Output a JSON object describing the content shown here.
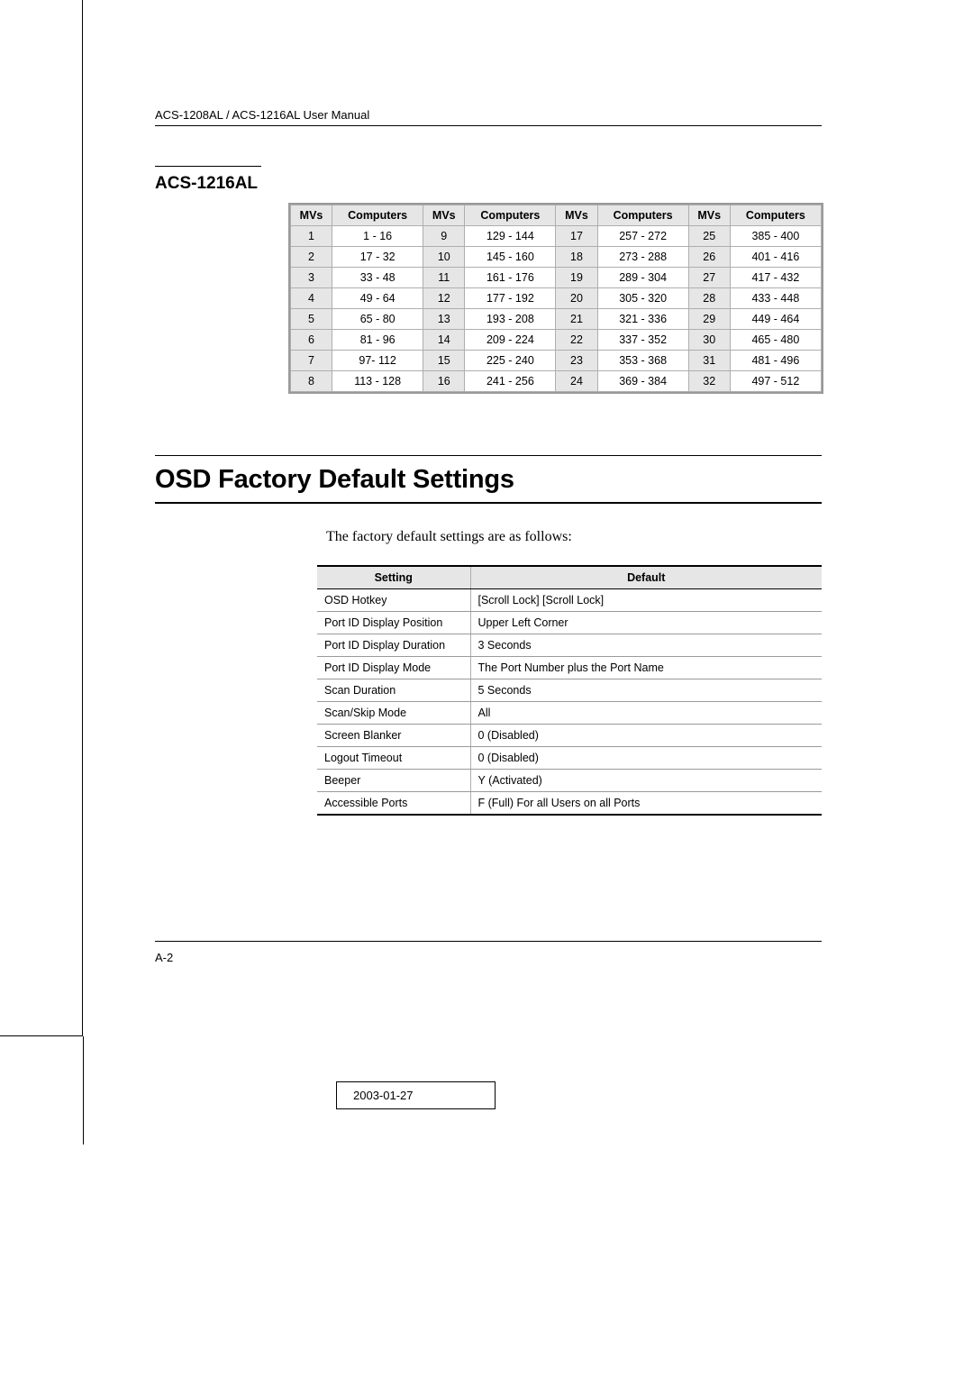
{
  "header": {
    "text": "ACS-1208AL / ACS-1216AL User Manual"
  },
  "subheading": "ACS-1216AL",
  "mvs_table": {
    "headers": [
      "MVs",
      "Computers",
      "MVs",
      "Computers",
      "MVs",
      "Computers",
      "MVs",
      "Computers"
    ],
    "rows": [
      [
        "1",
        "1 - 16",
        "9",
        "129 - 144",
        "17",
        "257 - 272",
        "25",
        "385 - 400"
      ],
      [
        "2",
        "17 - 32",
        "10",
        "145 - 160",
        "18",
        "273 - 288",
        "26",
        "401 - 416"
      ],
      [
        "3",
        "33 - 48",
        "11",
        "161 - 176",
        "19",
        "289 - 304",
        "27",
        "417 - 432"
      ],
      [
        "4",
        "49 - 64",
        "12",
        "177 - 192",
        "20",
        "305 - 320",
        "28",
        "433 - 448"
      ],
      [
        "5",
        "65 - 80",
        "13",
        "193 - 208",
        "21",
        "321 - 336",
        "29",
        "449 - 464"
      ],
      [
        "6",
        "81 - 96",
        "14",
        "209 - 224",
        "22",
        "337 - 352",
        "30",
        "465 - 480"
      ],
      [
        "7",
        "97- 112",
        "15",
        "225 - 240",
        "23",
        "353 - 368",
        "31",
        "481 - 496"
      ],
      [
        "8",
        "113 - 128",
        "16",
        "241 - 256",
        "24",
        "369 - 384",
        "32",
        "497 - 512"
      ]
    ]
  },
  "main_heading": "OSD Factory Default Settings",
  "intro_text": "The factory default settings are as follows:",
  "settings_table": {
    "headers": [
      "Setting",
      "Default"
    ],
    "rows": [
      [
        "OSD Hotkey",
        "[Scroll Lock] [Scroll Lock]"
      ],
      [
        "Port ID Display Position",
        "Upper Left Corner"
      ],
      [
        "Port ID Display Duration",
        "3 Seconds"
      ],
      [
        "Port ID Display Mode",
        "The Port Number plus the Port Name"
      ],
      [
        "Scan Duration",
        "5 Seconds"
      ],
      [
        "Scan/Skip Mode",
        "All"
      ],
      [
        "Screen Blanker",
        "0 (Disabled)"
      ],
      [
        "Logout Timeout",
        "0 (Disabled)"
      ],
      [
        "Beeper",
        "Y (Activated)"
      ],
      [
        "Accessible Ports",
        "F (Full) For all Users on all Ports"
      ]
    ]
  },
  "footer": {
    "page_number": "A-2"
  },
  "date_stamp": "2003-01-27"
}
